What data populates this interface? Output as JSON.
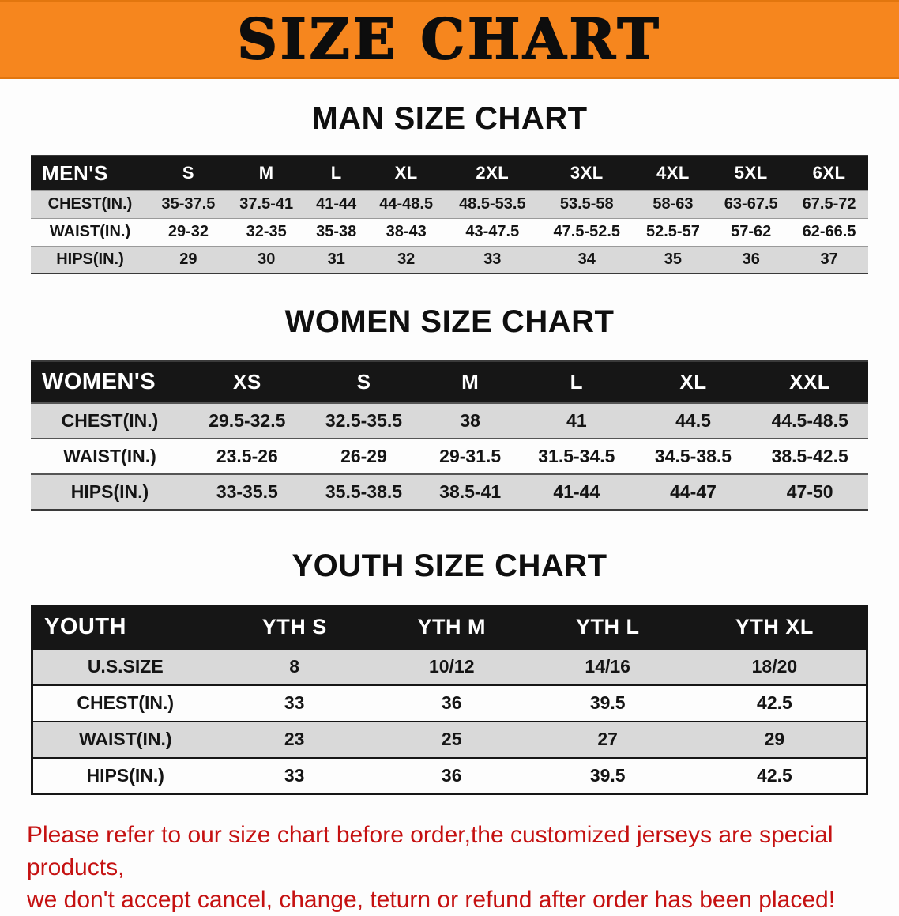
{
  "banner": {
    "title": "SIZE CHART",
    "background": "#F6861E"
  },
  "sections": [
    {
      "heading": "MAN SIZE CHART",
      "table": {
        "header": [
          "MEN'S",
          "S",
          "M",
          "L",
          "XL",
          "2XL",
          "3XL",
          "4XL",
          "5XL",
          "6XL"
        ],
        "rows": [
          [
            "CHEST(IN.)",
            "35-37.5",
            "37.5-41",
            "41-44",
            "44-48.5",
            "48.5-53.5",
            "53.5-58",
            "58-63",
            "63-67.5",
            "67.5-72"
          ],
          [
            "WAIST(IN.)",
            "29-32",
            "32-35",
            "35-38",
            "38-43",
            "43-47.5",
            "47.5-52.5",
            "52.5-57",
            "57-62",
            "62-66.5"
          ],
          [
            "HIPS(IN.)",
            "29",
            "30",
            "31",
            "32",
            "33",
            "34",
            "35",
            "36",
            "37"
          ]
        ]
      }
    },
    {
      "heading": "WOMEN SIZE CHART",
      "table": {
        "header": [
          "WOMEN'S",
          "XS",
          "S",
          "M",
          "L",
          "XL",
          "XXL"
        ],
        "rows": [
          [
            "CHEST(IN.)",
            "29.5-32.5",
            "32.5-35.5",
            "38",
            "41",
            "44.5",
            "44.5-48.5"
          ],
          [
            "WAIST(IN.)",
            "23.5-26",
            "26-29",
            "29-31.5",
            "31.5-34.5",
            "34.5-38.5",
            "38.5-42.5"
          ],
          [
            "HIPS(IN.)",
            "33-35.5",
            "35.5-38.5",
            "38.5-41",
            "41-44",
            "44-47",
            "47-50"
          ]
        ]
      }
    },
    {
      "heading": "YOUTH SIZE CHART",
      "table": {
        "header": [
          "YOUTH",
          "YTH S",
          "YTH M",
          "YTH L",
          "YTH XL"
        ],
        "rows": [
          [
            "U.S.SIZE",
            "8",
            "10/12",
            "14/16",
            "18/20"
          ],
          [
            "CHEST(IN.)",
            "33",
            "36",
            "39.5",
            "42.5"
          ],
          [
            "WAIST(IN.)",
            "23",
            "25",
            "27",
            "29"
          ],
          [
            "HIPS(IN.)",
            "33",
            "36",
            "39.5",
            "42.5"
          ]
        ]
      }
    }
  ],
  "disclaimer": {
    "line1": "Please refer to our size chart before order,the customized jerseys are special products,",
    "line2": "we don't accept cancel, change, teturn or refund after order has been placed!"
  },
  "colors": {
    "banner_orange": "#F6861E",
    "table_header_black": "#161616",
    "row_gray": "#D9D9D9",
    "row_white": "#FDFDFD",
    "disclaimer_red": "#C51111"
  }
}
